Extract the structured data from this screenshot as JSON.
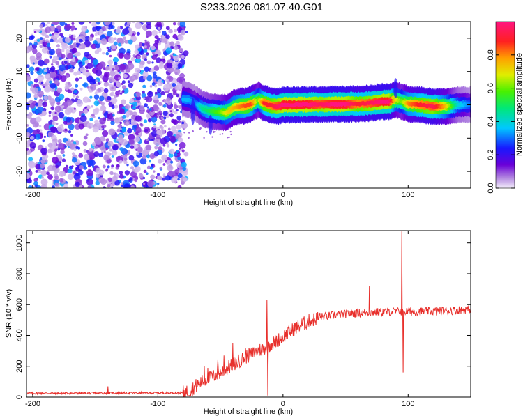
{
  "title": "S233.2026.081.07.40.G01",
  "chart_data": [
    {
      "type": "heatmap",
      "xlabel": "Height of straight line (km)",
      "ylabel": "Frequency (Hz)",
      "xlim": [
        -205,
        150
      ],
      "ylim": [
        -25,
        25
      ],
      "x_ticks": [
        -200,
        -100,
        0,
        100
      ],
      "y_ticks": [
        -20,
        -10,
        0,
        10,
        20
      ],
      "colorbar": {
        "label": "Normalized spectral amplitude",
        "range": [
          0,
          1
        ],
        "ticks": [
          0.0,
          0.2,
          0.4,
          0.6,
          0.8
        ]
      },
      "noise_region_x": [
        -205,
        -80
      ],
      "ridge_path": {
        "x": [
          -80,
          -75,
          -70,
          -65,
          -60,
          -55,
          -50,
          -45,
          -40,
          -35,
          -30,
          -25,
          -20,
          -15,
          -10,
          -5,
          0,
          10,
          20,
          30,
          40,
          50,
          60,
          70,
          80,
          85,
          90,
          95,
          100,
          110,
          120,
          130,
          140,
          150
        ],
        "freq_hz": [
          1.8,
          1.5,
          0.5,
          -1.0,
          -1.8,
          -2.0,
          -2.2,
          -2.3,
          -1.0,
          -0.5,
          -0.3,
          0.3,
          1.5,
          0.5,
          -0.2,
          -0.5,
          0.0,
          0.0,
          0.1,
          0.1,
          0.2,
          0.2,
          0.3,
          0.5,
          1.0,
          1.0,
          1.5,
          1.0,
          0.3,
          0.0,
          -0.5,
          -0.5,
          0.0,
          0.0
        ],
        "amplitude": [
          0.35,
          0.35,
          0.3,
          0.45,
          0.5,
          0.55,
          0.6,
          0.7,
          0.75,
          0.8,
          0.85,
          0.85,
          0.6,
          0.9,
          0.9,
          0.95,
          1.0,
          1.0,
          1.0,
          0.95,
          1.0,
          1.0,
          0.9,
          0.95,
          1.0,
          1.0,
          0.7,
          0.6,
          0.8,
          0.9,
          0.95,
          0.75,
          0.4,
          0.3
        ]
      }
    },
    {
      "type": "line",
      "xlabel": "Height of straight line (km)",
      "ylabel": "SNR (10 * v/v)",
      "xlim": [
        -205,
        150
      ],
      "ylim": [
        0,
        1080
      ],
      "x_ticks": [
        -200,
        -100,
        0,
        100
      ],
      "y_ticks": [
        0,
        200,
        400,
        600,
        800,
        1000
      ],
      "series": [
        {
          "name": "SNR",
          "color": "#e8302c",
          "trend_x": [
            -205,
            -80,
            -75,
            -65,
            -50,
            -40,
            -30,
            -20,
            -10,
            0,
            10,
            20,
            30,
            50,
            70,
            90,
            110,
            130,
            150
          ],
          "trend_y": [
            25,
            28,
            40,
            100,
            160,
            210,
            260,
            300,
            340,
            390,
            450,
            490,
            520,
            540,
            550,
            555,
            555,
            560,
            570
          ],
          "spikes": [
            {
              "x": -140,
              "y": 70
            },
            {
              "x": -63,
              "y": 200
            },
            {
              "x": -60,
              "y": 190
            },
            {
              "x": -52,
              "y": 240
            },
            {
              "x": -47,
              "y": 270
            },
            {
              "x": -40,
              "y": 350
            },
            {
              "x": -30,
              "y": 320
            },
            {
              "x": -13,
              "y": 630
            },
            {
              "x": -12,
              "y": 10
            },
            {
              "x": 69,
              "y": 720
            },
            {
              "x": 95,
              "y": 1075
            },
            {
              "x": 96,
              "y": 160
            }
          ]
        }
      ]
    }
  ]
}
